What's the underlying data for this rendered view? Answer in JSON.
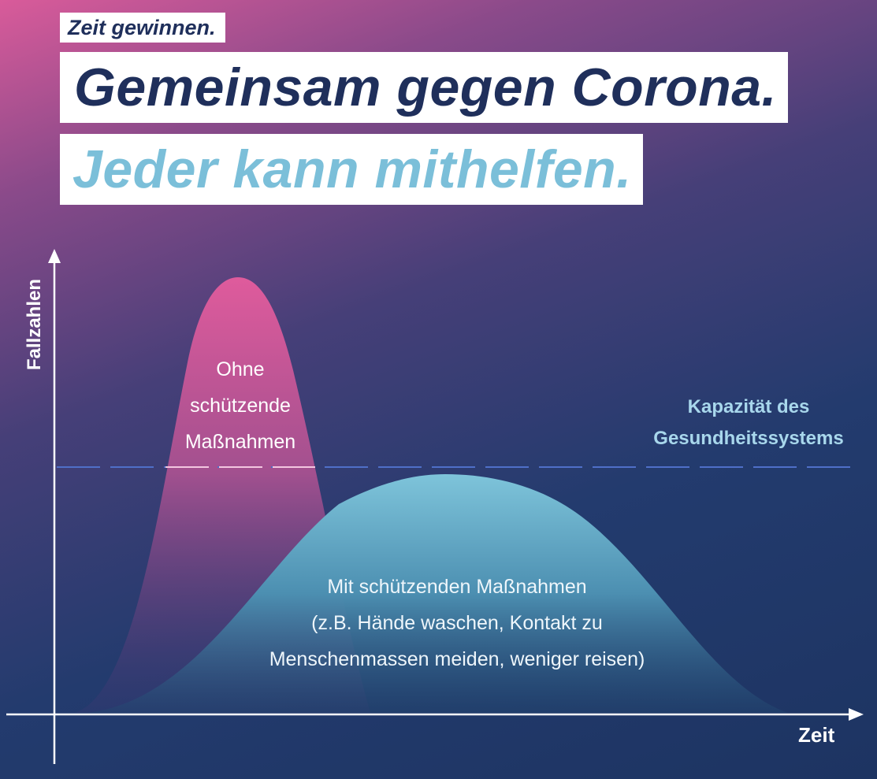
{
  "header": {
    "tag": "Zeit gewinnen.",
    "headline_1": "Gemeinsam gegen Corona.",
    "headline_2": "Jeder kann mithelfen."
  },
  "diagram": {
    "y_axis_label": "Fallzahlen",
    "x_axis_label": "Zeit",
    "capacity_label": [
      "Kapazität des",
      "Gesundheitssystems"
    ],
    "curve_without_label": [
      "Ohne",
      "schützende",
      "Maßnahmen"
    ],
    "curve_with_label": [
      "Mit schützenden Maßnahmen",
      "(z.B. Hände waschen, Kontakt zu",
      "Menschenmassen meiden, weniger reisen)"
    ]
  },
  "colors": {
    "navy": "#1f2f5b",
    "light_blue": "#7bbfd9",
    "pink": "#d95b9a",
    "capacity_line": "#4f6fc8"
  }
}
